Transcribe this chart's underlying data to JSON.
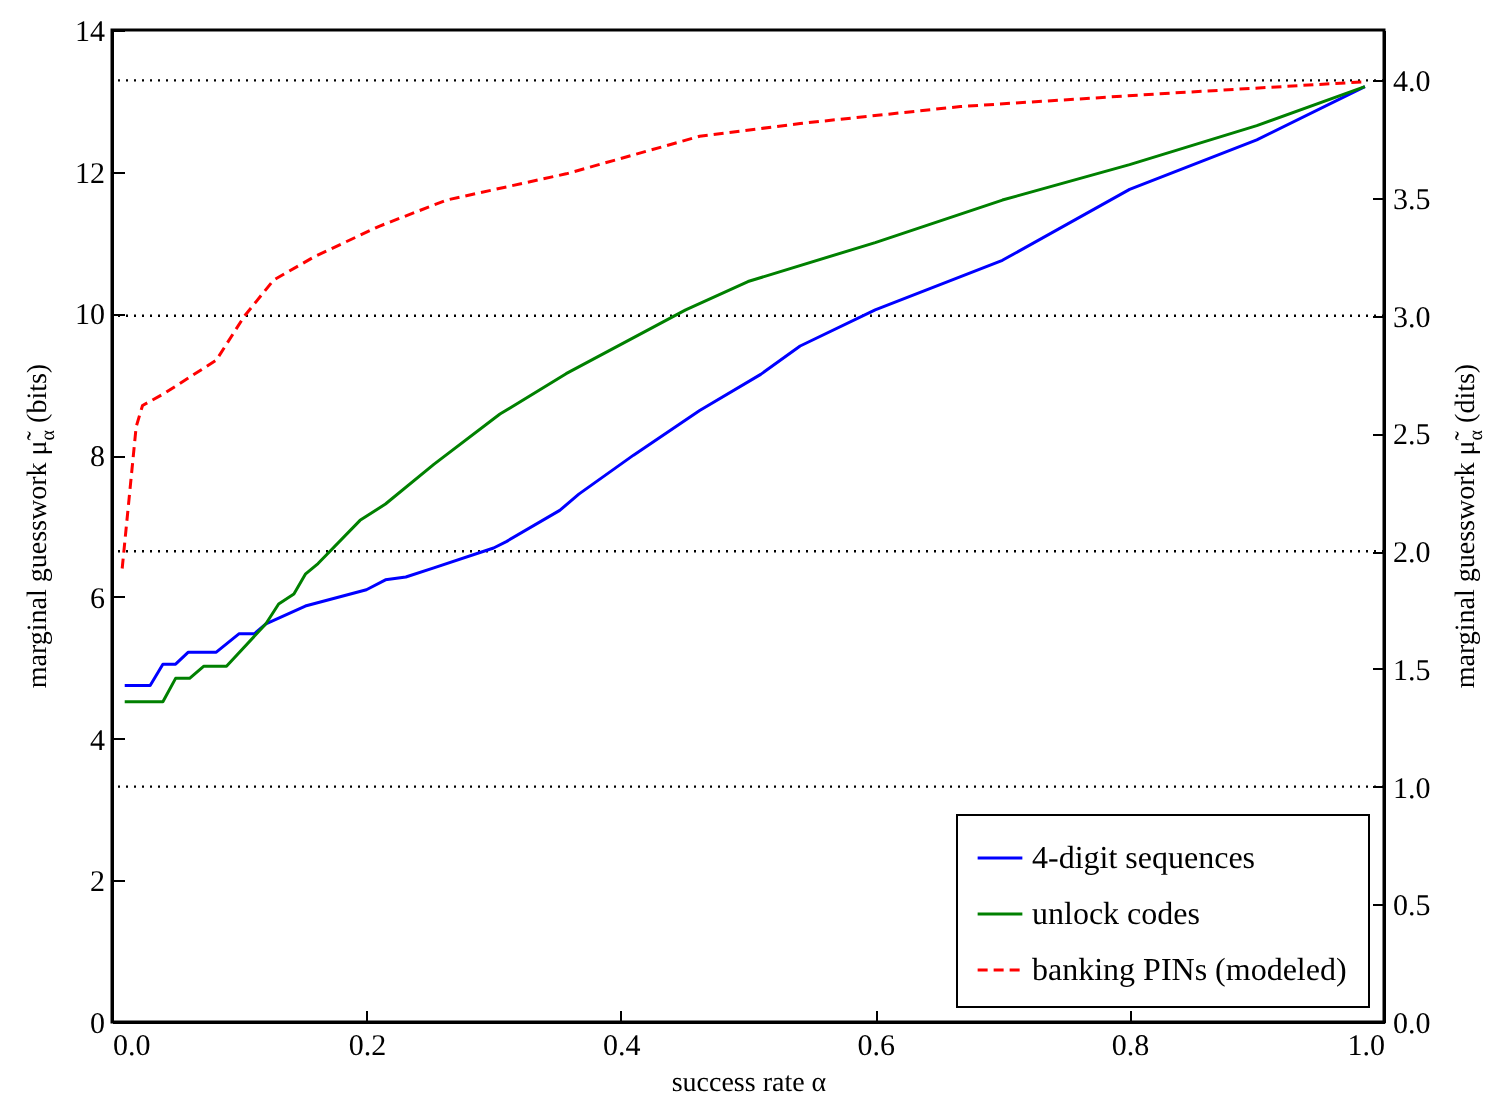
{
  "chart_data": {
    "type": "line",
    "xlabel": "success rate α",
    "ylabel": "marginal guesswork μ̃$_{α}$ (bits)",
    "y2label": "marginal guesswork μ̃$_{α}$ (dits)",
    "xlim": [
      0,
      1
    ],
    "xticks": [
      {
        "value": 0,
        "label": "0.0"
      },
      0.2,
      0.4,
      0.6,
      0.8,
      {
        "value": 1,
        "label": "1.0"
      }
    ],
    "ylim": [
      0,
      14
    ],
    "yticks": [
      0,
      2,
      4,
      6,
      8,
      10,
      12,
      14
    ],
    "y2lim": [
      0,
      4.214
    ],
    "y2ticks": [
      {
        "value": 0,
        "label": "0.0"
      },
      0.5,
      {
        "value": 1,
        "label": "1.0"
      },
      1.5,
      {
        "value": 2,
        "label": "2.0"
      },
      2.5,
      {
        "value": 3,
        "label": "3.0"
      },
      3.5,
      {
        "value": 4,
        "label": "4.0"
      }
    ],
    "legend": "bottom right",
    "grid": false,
    "ref_lines": [
      {
        "axis": "y2",
        "value": 1,
        "color": "#000000",
        "line_style": "dotted"
      },
      {
        "axis": "y2",
        "value": 2,
        "color": "#000000",
        "line_style": "dotted"
      },
      {
        "axis": "y2",
        "value": 3,
        "color": "#000000",
        "line_style": "dotted"
      },
      {
        "axis": "y2",
        "value": 4,
        "color": "#000000",
        "line_style": "dotted"
      }
    ],
    "series": [
      {
        "name": "4-digit sequences",
        "color": "#0000ff",
        "line_style": "solid",
        "x": [
          0.01,
          0.03,
          0.04,
          0.05,
          0.06,
          0.082,
          0.1,
          0.112,
          0.121,
          0.152,
          0.2,
          0.215,
          0.231,
          0.253,
          0.3,
          0.31,
          0.352,
          0.367,
          0.41,
          0.462,
          0.51,
          0.541,
          0.6,
          0.7,
          0.8,
          0.9,
          0.985
        ],
        "values": [
          4.75,
          4.75,
          5.05,
          5.05,
          5.22,
          5.22,
          5.48,
          5.48,
          5.62,
          5.87,
          6.1,
          6.24,
          6.28,
          6.41,
          6.69,
          6.78,
          7.22,
          7.45,
          8.0,
          8.63,
          9.14,
          9.54,
          10.05,
          10.75,
          11.75,
          12.45,
          13.2
        ]
      },
      {
        "name": "unlock codes",
        "color": "#008000",
        "line_style": "solid",
        "x": [
          0.01,
          0.04,
          0.05,
          0.061,
          0.072,
          0.09,
          0.121,
          0.131,
          0.143,
          0.152,
          0.162,
          0.195,
          0.215,
          0.253,
          0.305,
          0.357,
          0.451,
          0.5,
          0.6,
          0.7,
          0.8,
          0.9,
          0.985
        ],
        "values": [
          4.52,
          4.52,
          4.85,
          4.85,
          5.02,
          5.02,
          5.62,
          5.9,
          6.04,
          6.32,
          6.47,
          7.08,
          7.31,
          7.87,
          8.58,
          9.15,
          10.05,
          10.45,
          11.0,
          11.6,
          12.1,
          12.65,
          13.2
        ]
      },
      {
        "name": "banking PINs (modeled)",
        "color": "#ff0000",
        "line_style": "dashed",
        "x": [
          0.008,
          0.019,
          0.024,
          0.041,
          0.082,
          0.104,
          0.127,
          0.159,
          0.21,
          0.263,
          0.357,
          0.462,
          0.541,
          0.667,
          0.824,
          0.985
        ],
        "values": [
          6.4,
          8.4,
          8.7,
          8.87,
          9.34,
          9.96,
          10.47,
          10.8,
          11.23,
          11.6,
          11.97,
          12.5,
          12.68,
          12.92,
          13.1,
          13.27
        ]
      }
    ]
  }
}
